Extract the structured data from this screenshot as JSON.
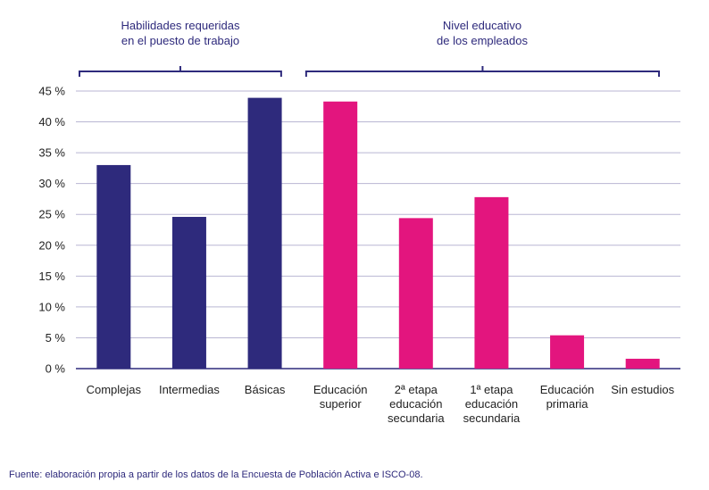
{
  "chart_data": {
    "type": "bar",
    "categories": [
      "Complejas",
      "Intermedias",
      "Básicas",
      "Educación\nsuperior",
      "2ª etapa\neducación\nsecundaria",
      "1ª etapa\neducación\nsecundaria",
      "Educación\nprimaria",
      "Sin estudios"
    ],
    "values": [
      33.0,
      24.6,
      43.9,
      43.3,
      24.4,
      27.8,
      5.4,
      1.6
    ],
    "groups": [
      {
        "label": "Habilidades requeridas\nen el puesto de trabajo",
        "categories": [
          0,
          1,
          2
        ],
        "color": "#2e2a7c"
      },
      {
        "label": "Nivel educativo\nde los empleados",
        "categories": [
          3,
          4,
          5,
          6,
          7
        ],
        "color": "#e3157e"
      }
    ],
    "yticks": [
      "0 %",
      "5 %",
      "10 %",
      "15 %",
      "20 %",
      "25 %",
      "30 %",
      "35 %",
      "40 %",
      "45 %"
    ],
    "ylim": [
      0,
      45
    ],
    "grid": true,
    "colors": {
      "grid": "#b9b6d3",
      "axis": "#2e2a7c"
    }
  },
  "source_note": "Fuente: elaboración propia a partir de los datos de la Encuesta de Población Activa e ISCO-08."
}
